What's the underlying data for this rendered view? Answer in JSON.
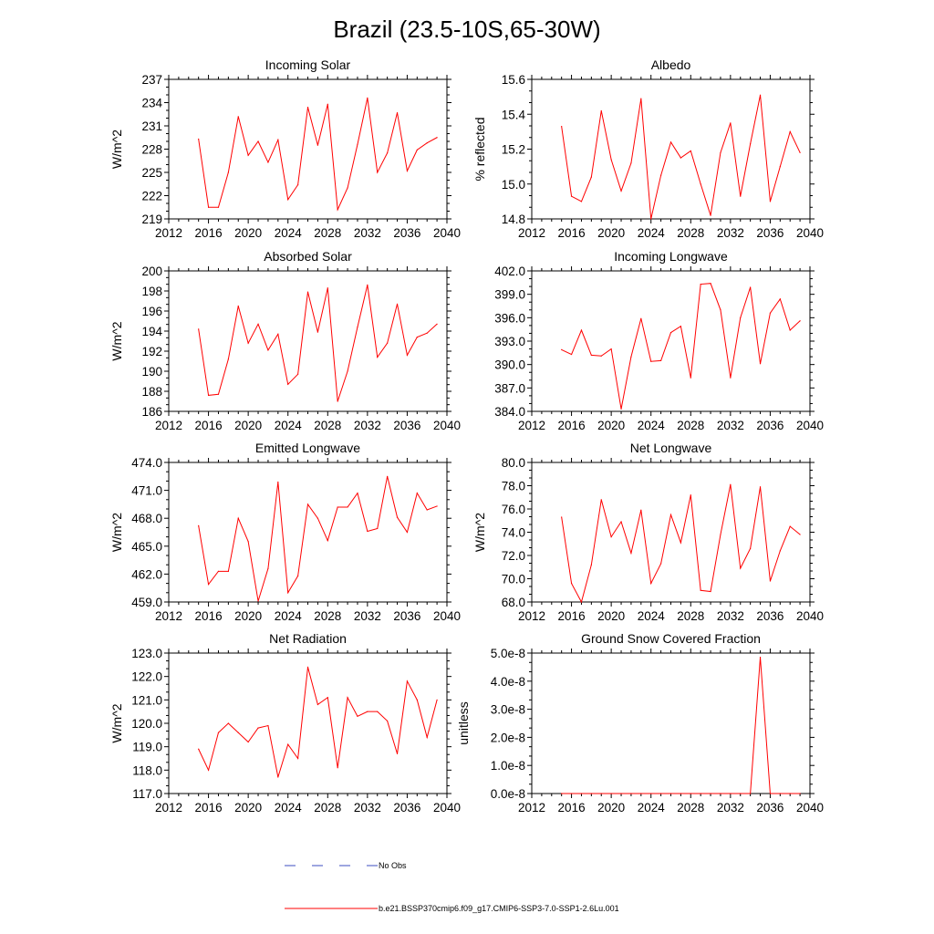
{
  "title": "Brazil (23.5-10S,65-30W)",
  "colors": {
    "model": "#ff0000",
    "obs": "#3b4cc0",
    "axis": "#000000"
  },
  "legend": {
    "obs_label": "No Obs",
    "model_label": "b.e21.BSSP370cmip6.f09_g17.CMIP6-SSP3-7.0-SSP1-2.6Lu.001"
  },
  "chart_data": [
    {
      "type": "line",
      "title": "Incoming Solar",
      "xlabel": "",
      "ylabel": "W/m^2",
      "xlim": [
        2012,
        2040
      ],
      "xticks": [
        2012,
        2016,
        2020,
        2024,
        2028,
        2032,
        2036,
        2040
      ],
      "ylim": [
        219,
        237
      ],
      "yticks": [
        219,
        222,
        225,
        228,
        231,
        234,
        237
      ],
      "yticklabels": [
        "219",
        "222",
        "225",
        "228",
        "231",
        "234",
        "237"
      ],
      "x": [
        2015,
        2016,
        2017,
        2018,
        2019,
        2020,
        2021,
        2022,
        2023,
        2024,
        2025,
        2026,
        2027,
        2028,
        2029,
        2030,
        2031,
        2032,
        2033,
        2034,
        2035,
        2036,
        2037,
        2038,
        2039
      ],
      "series": [
        {
          "values": [
            229.3,
            220.5,
            220.5,
            225.0,
            232.2,
            227.2,
            229.0,
            226.3,
            229.2,
            221.5,
            223.4,
            233.4,
            228.5,
            233.8,
            220.2,
            223.0,
            228.6,
            234.6,
            225.0,
            227.5,
            232.7,
            225.2,
            227.9,
            228.8,
            229.5
          ]
        }
      ]
    },
    {
      "type": "line",
      "title": "Albedo",
      "xlabel": "",
      "ylabel": "% reflected",
      "xlim": [
        2012,
        2040
      ],
      "xticks": [
        2012,
        2016,
        2020,
        2024,
        2028,
        2032,
        2036,
        2040
      ],
      "ylim": [
        14.8,
        15.6
      ],
      "yticks": [
        14.8,
        15.0,
        15.2,
        15.4,
        15.6
      ],
      "yticklabels": [
        "14.8",
        "15.0",
        "15.2",
        "15.4",
        "15.6"
      ],
      "x": [
        2015,
        2016,
        2017,
        2018,
        2019,
        2020,
        2021,
        2022,
        2023,
        2024,
        2025,
        2026,
        2027,
        2028,
        2029,
        2030,
        2031,
        2032,
        2033,
        2034,
        2035,
        2036,
        2037,
        2038,
        2039
      ],
      "series": [
        {
          "values": [
            15.33,
            14.93,
            14.9,
            15.04,
            15.42,
            15.14,
            14.96,
            15.12,
            15.49,
            14.8,
            15.05,
            15.24,
            15.15,
            15.19,
            15.0,
            14.82,
            15.18,
            15.35,
            14.93,
            15.23,
            15.51,
            14.9,
            15.1,
            15.3,
            15.18
          ]
        }
      ]
    },
    {
      "type": "line",
      "title": "Absorbed Solar",
      "xlabel": "",
      "ylabel": "W/m^2",
      "xlim": [
        2012,
        2040
      ],
      "xticks": [
        2012,
        2016,
        2020,
        2024,
        2028,
        2032,
        2036,
        2040
      ],
      "ylim": [
        186,
        200
      ],
      "yticks": [
        186,
        188,
        190,
        192,
        194,
        196,
        198,
        200
      ],
      "yticklabels": [
        "186",
        "188",
        "190",
        "192",
        "194",
        "196",
        "198",
        "200"
      ],
      "x": [
        2015,
        2016,
        2017,
        2018,
        2019,
        2020,
        2021,
        2022,
        2023,
        2024,
        2025,
        2026,
        2027,
        2028,
        2029,
        2030,
        2031,
        2032,
        2033,
        2034,
        2035,
        2036,
        2037,
        2038,
        2039
      ],
      "series": [
        {
          "values": [
            194.2,
            187.6,
            187.7,
            191.2,
            196.5,
            192.8,
            194.7,
            192.1,
            193.7,
            188.7,
            189.7,
            197.9,
            193.9,
            198.3,
            187.0,
            190.0,
            194.4,
            198.6,
            191.4,
            192.8,
            196.7,
            191.6,
            193.4,
            193.8,
            194.7
          ]
        }
      ]
    },
    {
      "type": "line",
      "title": "Incoming Longwave",
      "xlabel": "",
      "ylabel": "",
      "xlim": [
        2012,
        2040
      ],
      "xticks": [
        2012,
        2016,
        2020,
        2024,
        2028,
        2032,
        2036,
        2040
      ],
      "ylim": [
        384,
        402
      ],
      "yticks": [
        384,
        387,
        390,
        393,
        396,
        399,
        402
      ],
      "yticklabels": [
        "384.0",
        "387.0",
        "390.0",
        "393.0",
        "396.0",
        "399.0",
        "402.0"
      ],
      "x": [
        2015,
        2016,
        2017,
        2018,
        2019,
        2020,
        2021,
        2022,
        2023,
        2024,
        2025,
        2026,
        2027,
        2028,
        2029,
        2030,
        2031,
        2032,
        2033,
        2034,
        2035,
        2036,
        2037,
        2038,
        2039
      ],
      "series": [
        {
          "values": [
            391.9,
            391.3,
            394.4,
            391.2,
            391.1,
            392.0,
            384.3,
            391.0,
            395.9,
            390.4,
            390.5,
            394.1,
            394.9,
            388.3,
            400.3,
            400.4,
            397.0,
            388.3,
            396.0,
            399.9,
            390.1,
            396.6,
            398.4,
            394.4,
            395.6
          ]
        }
      ]
    },
    {
      "type": "line",
      "title": "Emitted Longwave",
      "xlabel": "",
      "ylabel": "W/m^2",
      "xlim": [
        2012,
        2040
      ],
      "xticks": [
        2012,
        2016,
        2020,
        2024,
        2028,
        2032,
        2036,
        2040
      ],
      "ylim": [
        459,
        474
      ],
      "yticks": [
        459,
        462,
        465,
        468,
        471,
        474
      ],
      "yticklabels": [
        "459.0",
        "462.0",
        "465.0",
        "468.0",
        "471.0",
        "474.0"
      ],
      "x": [
        2015,
        2016,
        2017,
        2018,
        2019,
        2020,
        2021,
        2022,
        2023,
        2024,
        2025,
        2026,
        2027,
        2028,
        2029,
        2030,
        2031,
        2032,
        2033,
        2034,
        2035,
        2036,
        2037,
        2038,
        2039
      ],
      "series": [
        {
          "values": [
            467.2,
            460.9,
            462.3,
            462.3,
            468.0,
            465.5,
            459.1,
            462.6,
            471.9,
            460.0,
            461.8,
            469.5,
            468.0,
            465.6,
            469.2,
            469.2,
            470.7,
            466.6,
            466.9,
            472.5,
            468.1,
            466.5,
            470.7,
            468.9,
            469.3
          ]
        }
      ]
    },
    {
      "type": "line",
      "title": "Net Longwave",
      "xlabel": "",
      "ylabel": "W/m^2",
      "xlim": [
        2012,
        2040
      ],
      "xticks": [
        2012,
        2016,
        2020,
        2024,
        2028,
        2032,
        2036,
        2040
      ],
      "ylim": [
        68,
        80
      ],
      "yticks": [
        68,
        70,
        72,
        74,
        76,
        78,
        80
      ],
      "yticklabels": [
        "68.0",
        "70.0",
        "72.0",
        "74.0",
        "76.0",
        "78.0",
        "80.0"
      ],
      "x": [
        2015,
        2016,
        2017,
        2018,
        2019,
        2020,
        2021,
        2022,
        2023,
        2024,
        2025,
        2026,
        2027,
        2028,
        2029,
        2030,
        2031,
        2032,
        2033,
        2034,
        2035,
        2036,
        2037,
        2038,
        2039
      ],
      "series": [
        {
          "values": [
            75.3,
            69.6,
            68.0,
            71.2,
            76.8,
            73.6,
            74.9,
            72.2,
            75.9,
            69.6,
            71.3,
            75.5,
            73.1,
            77.2,
            69.0,
            68.9,
            73.8,
            78.1,
            70.9,
            72.6,
            77.9,
            69.8,
            72.4,
            74.5,
            73.8
          ]
        }
      ]
    },
    {
      "type": "line",
      "title": "Net Radiation",
      "xlabel": "",
      "ylabel": "W/m^2",
      "xlim": [
        2012,
        2040
      ],
      "xticks": [
        2012,
        2016,
        2020,
        2024,
        2028,
        2032,
        2036,
        2040
      ],
      "ylim": [
        117,
        123
      ],
      "yticks": [
        117,
        118,
        119,
        120,
        121,
        122,
        123
      ],
      "yticklabels": [
        "117.0",
        "118.0",
        "119.0",
        "120.0",
        "121.0",
        "122.0",
        "123.0"
      ],
      "x": [
        2015,
        2016,
        2017,
        2018,
        2019,
        2020,
        2021,
        2022,
        2023,
        2024,
        2025,
        2026,
        2027,
        2028,
        2029,
        2030,
        2031,
        2032,
        2033,
        2034,
        2035,
        2036,
        2037,
        2038,
        2039
      ],
      "series": [
        {
          "values": [
            118.9,
            118.0,
            119.6,
            120.0,
            119.6,
            119.2,
            119.8,
            119.9,
            117.7,
            119.1,
            118.5,
            122.4,
            120.8,
            121.1,
            118.1,
            121.1,
            120.3,
            120.5,
            120.5,
            120.1,
            118.7,
            121.8,
            121.0,
            119.4,
            121.0
          ]
        }
      ]
    },
    {
      "type": "line",
      "title": "Ground Snow Covered Fraction",
      "xlabel": "",
      "ylabel": "unitless",
      "xlim": [
        2012,
        2040
      ],
      "xticks": [
        2012,
        2016,
        2020,
        2024,
        2028,
        2032,
        2036,
        2040
      ],
      "ylim": [
        0,
        5e-08
      ],
      "yticks": [
        0,
        1e-08,
        2e-08,
        3e-08,
        4e-08,
        5e-08
      ],
      "yticklabels": [
        "0.0e-8",
        "1.0e-8",
        "2.0e-8",
        "3.0e-8",
        "4.0e-8",
        "5.0e-8"
      ],
      "x": [
        2015,
        2016,
        2017,
        2018,
        2019,
        2020,
        2021,
        2022,
        2023,
        2024,
        2025,
        2026,
        2027,
        2028,
        2029,
        2030,
        2031,
        2032,
        2033,
        2034,
        2035,
        2036,
        2037,
        2038,
        2039
      ],
      "series": [
        {
          "values": [
            0,
            0,
            0,
            0,
            0,
            0,
            0,
            0,
            0,
            0,
            0,
            0,
            0,
            0,
            0,
            0,
            0,
            0,
            0,
            0,
            4.85e-08,
            0,
            0,
            0,
            0
          ]
        }
      ]
    }
  ]
}
